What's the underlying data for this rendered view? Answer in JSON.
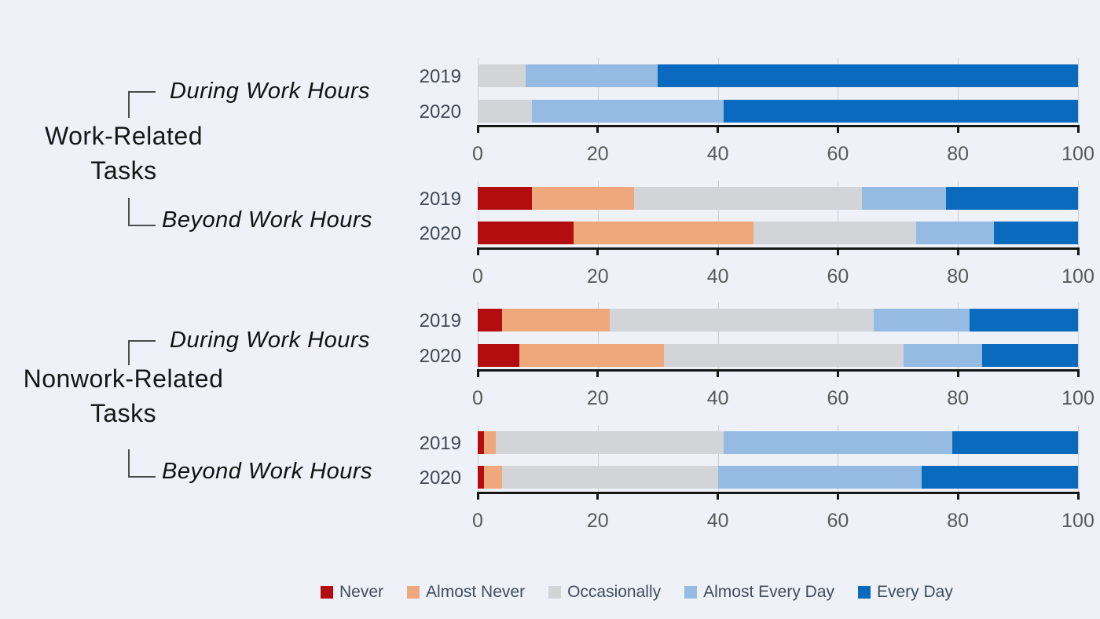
{
  "background": "#eef1f7",
  "palette": {
    "never": "#b30d10",
    "almost_never": "#efa87c",
    "occasionally": "#d2d4d7",
    "almost_every_day": "#95bbe2",
    "every_day": "#0a6abe"
  },
  "legend": {
    "items": [
      {
        "key": "never",
        "label": "Never"
      },
      {
        "key": "almost_never",
        "label": "Almost Never"
      },
      {
        "key": "occasionally",
        "label": "Occasionally"
      },
      {
        "key": "almost_every_day",
        "label": "Almost Every Day"
      },
      {
        "key": "every_day",
        "label": "Every Day"
      }
    ]
  },
  "chart_data": {
    "type": "bar",
    "orientation": "horizontal",
    "stacked": true,
    "units": "percent",
    "xlim": [
      0,
      100
    ],
    "x_ticks": [
      0,
      20,
      40,
      60,
      80,
      100
    ],
    "grid": true,
    "legend_position": "bottom",
    "series_order": [
      "never",
      "almost_never",
      "occasionally",
      "almost_every_day",
      "every_day"
    ],
    "series_labels": [
      "Never",
      "Almost Never",
      "Occasionally",
      "Almost Every Day",
      "Every Day"
    ],
    "groups": [
      {
        "title": "Work-Related Tasks",
        "title_line1": "Work-Related",
        "title_line2": "Tasks",
        "panels": [
          {
            "label": "During Work Hours",
            "rows": [
              {
                "year": "2019",
                "values": {
                  "never": 0,
                  "almost_never": 0,
                  "occasionally": 8,
                  "almost_every_day": 22,
                  "every_day": 70
                }
              },
              {
                "year": "2020",
                "values": {
                  "never": 0,
                  "almost_never": 0,
                  "occasionally": 9,
                  "almost_every_day": 32,
                  "every_day": 59
                }
              }
            ]
          },
          {
            "label": "Beyond Work Hours",
            "rows": [
              {
                "year": "2019",
                "values": {
                  "never": 9,
                  "almost_never": 17,
                  "occasionally": 38,
                  "almost_every_day": 14,
                  "every_day": 22
                }
              },
              {
                "year": "2020",
                "values": {
                  "never": 16,
                  "almost_never": 30,
                  "occasionally": 27,
                  "almost_every_day": 13,
                  "every_day": 14
                }
              }
            ]
          }
        ]
      },
      {
        "title": "Nonwork-Related Tasks",
        "title_line1": "Nonwork-Related",
        "title_line2": "Tasks",
        "panels": [
          {
            "label": "During Work Hours",
            "rows": [
              {
                "year": "2019",
                "values": {
                  "never": 4,
                  "almost_never": 18,
                  "occasionally": 44,
                  "almost_every_day": 16,
                  "every_day": 18
                }
              },
              {
                "year": "2020",
                "values": {
                  "never": 7,
                  "almost_never": 24,
                  "occasionally": 40,
                  "almost_every_day": 13,
                  "every_day": 16
                }
              }
            ]
          },
          {
            "label": "Beyond Work Hours",
            "rows": [
              {
                "year": "2019",
                "values": {
                  "never": 1,
                  "almost_never": 2,
                  "occasionally": 38,
                  "almost_every_day": 38,
                  "every_day": 21
                }
              },
              {
                "year": "2020",
                "values": {
                  "never": 1,
                  "almost_never": 3,
                  "occasionally": 36,
                  "almost_every_day": 34,
                  "every_day": 26
                }
              }
            ]
          }
        ]
      }
    ]
  }
}
